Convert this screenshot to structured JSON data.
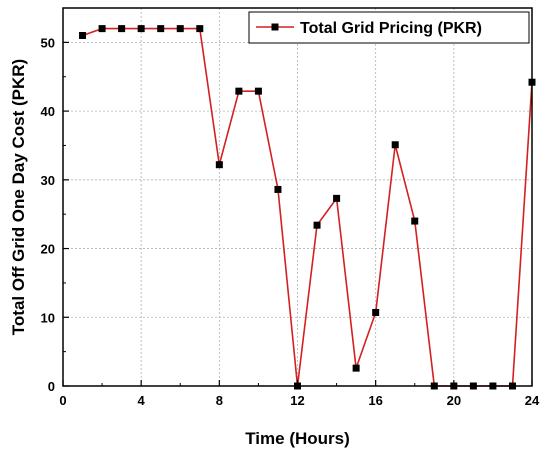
{
  "chart_data": {
    "type": "line",
    "title": "",
    "xlabel": "Time (Hours)",
    "ylabel": "Total Off Grid One Day Cost (PKR)",
    "xlim": [
      0,
      24
    ],
    "ylim": [
      0,
      55
    ],
    "xticks": [
      0,
      4,
      8,
      12,
      16,
      20,
      24
    ],
    "yticks": [
      0,
      10,
      20,
      30,
      40,
      50
    ],
    "grid": true,
    "legend_position": "top-right",
    "series": [
      {
        "name": "Total Grid Pricing (PKR)",
        "color": "#d42020",
        "marker": "square",
        "marker_color": "#000000",
        "x": [
          1,
          2,
          3,
          4,
          5,
          6,
          7,
          8,
          9,
          10,
          11,
          12,
          13,
          14,
          15,
          16,
          17,
          18,
          19,
          20,
          21,
          22,
          23,
          24
        ],
        "y": [
          51,
          52,
          52,
          52,
          52,
          52,
          52,
          32.2,
          42.9,
          42.9,
          28.6,
          0,
          23.4,
          27.3,
          2.6,
          10.7,
          35.1,
          24,
          0,
          0,
          0,
          0,
          0,
          44.2
        ]
      }
    ]
  }
}
